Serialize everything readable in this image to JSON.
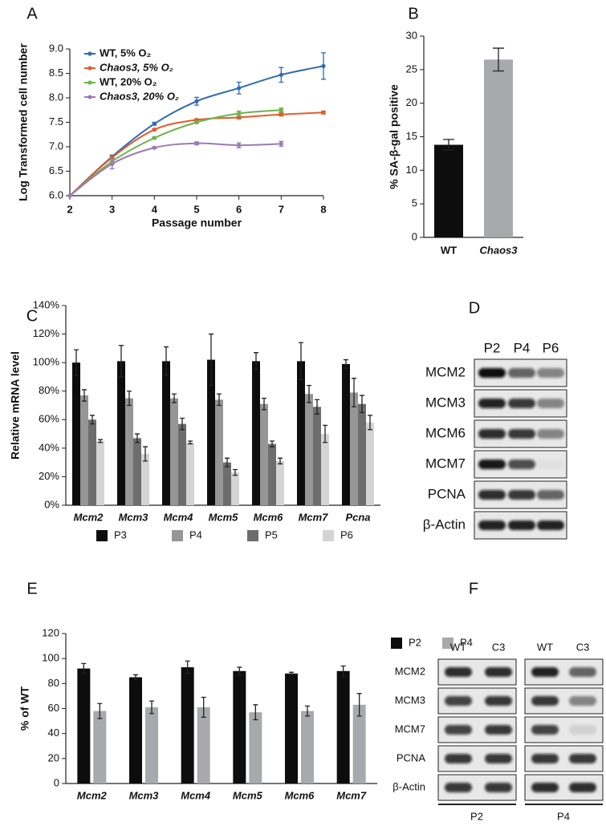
{
  "chart_data": [
    {
      "panel": "A",
      "type": "line",
      "x_label": "Passage number",
      "y_label": "Log Transformed cell number",
      "xlim": [
        2,
        8
      ],
      "xticks": [
        2,
        3,
        4,
        5,
        6,
        7,
        8
      ],
      "ylim": [
        6,
        9
      ],
      "yticks": [
        {
          "value": 6,
          "label": "6.0"
        },
        6.5,
        {
          "value": 7,
          "label": "7.0"
        },
        7.5,
        {
          "value": 8,
          "label": "8.0"
        },
        8.5,
        {
          "value": 9,
          "label": "9.0"
        }
      ],
      "legend": "upper left",
      "series": [
        {
          "name": "WT, 5% O₂",
          "color": "#2e6db4",
          "font_style": "normal",
          "x": [
            2,
            3,
            4,
            5,
            6,
            7,
            8
          ],
          "values": [
            6.0,
            6.8,
            7.47,
            7.93,
            8.2,
            8.47,
            8.65
          ],
          "errors": [
            0,
            0.03,
            0.03,
            0.08,
            0.12,
            0.15,
            0.27
          ]
        },
        {
          "name": "Chaos3, 5% O₂",
          "color": "#e35b2a",
          "font_style": "italic",
          "x": [
            2,
            3,
            4,
            5,
            6,
            7,
            8
          ],
          "values": [
            6.0,
            6.78,
            7.35,
            7.55,
            7.6,
            7.66,
            7.7
          ],
          "errors": [
            0,
            0.03,
            0.02,
            0.02,
            0.03,
            0.03,
            0.03
          ]
        },
        {
          "name": "WT, 20% O₂",
          "color": "#6ab54a",
          "font_style": "normal",
          "x": [
            2,
            3,
            4,
            5,
            6,
            7
          ],
          "values": [
            6.0,
            6.7,
            7.18,
            7.5,
            7.68,
            7.75
          ],
          "errors": [
            0,
            0.05,
            0.02,
            0.02,
            0.05,
            0.04
          ]
        },
        {
          "name": "Chaos3, 20% O₂",
          "color": "#9b7ab8",
          "font_style": "italic",
          "x": [
            2,
            3,
            4,
            5,
            6,
            7
          ],
          "values": [
            6.0,
            6.65,
            6.98,
            7.07,
            7.03,
            7.06
          ],
          "errors": [
            0,
            0.1,
            0.02,
            0.03,
            0.05,
            0.05
          ]
        }
      ]
    },
    {
      "panel": "B",
      "type": "bar",
      "y_label": "% SA-β-gal positive",
      "categories": [
        "WT",
        "Chaos3"
      ],
      "category_font_style": [
        "normal",
        "italic"
      ],
      "values": [
        13.8,
        26.5
      ],
      "errors": [
        0.8,
        1.7
      ],
      "colors": [
        "#0d0d0d",
        "#a7a9ac"
      ],
      "ylim": [
        0,
        30
      ],
      "yticks": [
        0,
        5,
        10,
        15,
        20,
        25,
        30
      ]
    },
    {
      "panel": "C",
      "type": "bar",
      "y_label": "Relative mRNA level",
      "categories": [
        "Mcm2",
        "Mcm3",
        "Mcm4",
        "Mcm5",
        "Mcm6",
        "Mcm7",
        "Pcna"
      ],
      "category_font_style": "italic",
      "ylim": [
        0,
        140
      ],
      "yticks": [
        {
          "value": 0,
          "label": "0%"
        },
        {
          "value": 20,
          "label": "20%"
        },
        {
          "value": 40,
          "label": "40%"
        },
        {
          "value": 60,
          "label": "60%"
        },
        {
          "value": 80,
          "label": "80%"
        },
        {
          "value": 100,
          "label": "100%"
        },
        {
          "value": 120,
          "label": "120%"
        },
        {
          "value": 140,
          "label": "140%"
        }
      ],
      "legend": "bottom",
      "series": [
        {
          "name": "P3",
          "color": "#0d0d0d",
          "values": [
            100,
            101,
            101,
            102,
            101,
            101,
            99
          ],
          "errors": [
            9,
            11,
            10,
            18,
            6,
            13,
            3
          ]
        },
        {
          "name": "P4",
          "color": "#969696",
          "values": [
            77,
            75,
            75,
            74,
            71,
            78,
            79
          ],
          "errors": [
            4,
            5,
            3,
            4,
            4,
            6,
            10
          ]
        },
        {
          "name": "P5",
          "color": "#6d6d6d",
          "values": [
            60,
            47,
            57,
            30,
            43,
            69,
            71
          ],
          "errors": [
            3,
            3,
            4,
            3,
            2,
            5,
            6
          ]
        },
        {
          "name": "P6",
          "color": "#d4d4d4",
          "values": [
            45,
            36,
            44,
            23,
            31,
            50,
            58
          ],
          "errors": [
            1,
            5,
            1,
            2,
            2,
            6,
            5
          ]
        }
      ]
    },
    {
      "panel": "E",
      "type": "bar",
      "y_label": "% of WT",
      "categories": [
        "Mcm2",
        "Mcm3",
        "Mcm4",
        "Mcm5",
        "Mcm6",
        "Mcm7"
      ],
      "category_font_style": "italic",
      "ylim": [
        0,
        120
      ],
      "yticks": [
        0,
        20,
        40,
        60,
        80,
        100,
        120
      ],
      "legend": "upper right",
      "series": [
        {
          "name": "P2",
          "color": "#0d0d0d",
          "values": [
            92,
            85,
            93,
            90,
            88,
            90
          ],
          "errors": [
            4,
            2,
            5,
            3,
            1,
            4
          ]
        },
        {
          "name": "P4",
          "color": "#a7a9ac",
          "values": [
            58,
            61,
            61,
            57,
            58,
            63
          ],
          "errors": [
            6,
            5,
            8,
            6,
            4,
            9
          ]
        }
      ]
    }
  ],
  "blots": [
    {
      "panel": "D",
      "lanes": [
        "P2",
        "P4",
        "P6"
      ],
      "rows": [
        "MCM2",
        "MCM3",
        "MCM6",
        "MCM7",
        "PCNA",
        "β-Actin"
      ]
    },
    {
      "panel": "F",
      "groups": [
        {
          "name": "P2",
          "lanes": [
            "WT",
            "C3"
          ]
        },
        {
          "name": "P4",
          "lanes": [
            "WT",
            "C3"
          ]
        }
      ],
      "rows": [
        "MCM2",
        "MCM3",
        "MCM7",
        "PCNA",
        "β-Actin"
      ]
    }
  ]
}
